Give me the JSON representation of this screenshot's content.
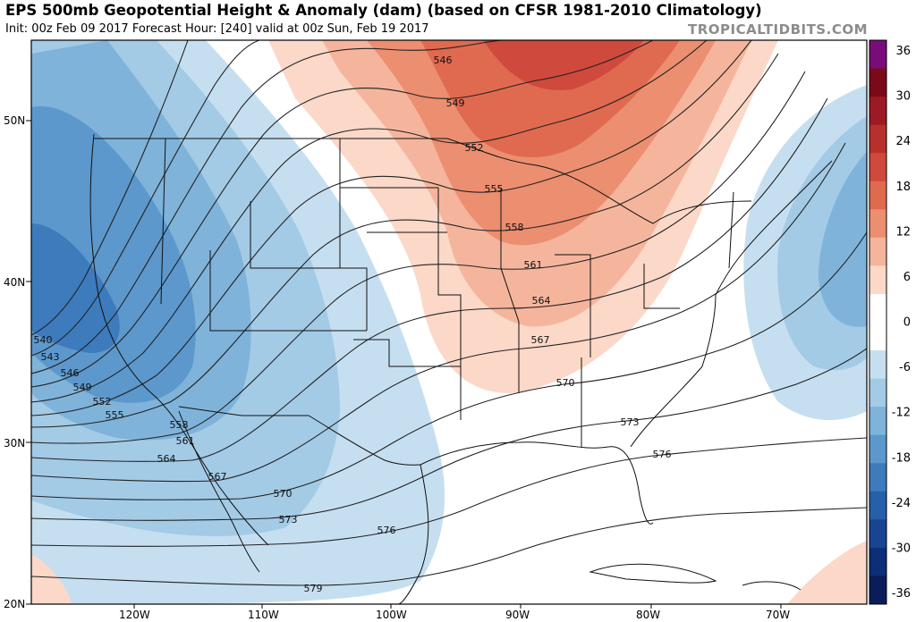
{
  "header": {
    "title": "EPS 500mb Geopotential Height & Anomaly (dam) (based on CFSR 1981-2010 Climatology)",
    "subtitle": "Init: 00z Feb 09 2017   Forecast Hour: [240]   valid at 00z Sun, Feb 19 2017",
    "brand": "TROPICALTIDBITS.COM"
  },
  "map": {
    "lat_labels": [
      "50N",
      "40N",
      "30N",
      "20N"
    ],
    "lon_labels": [
      "120W",
      "110W",
      "100W",
      "90W",
      "80W",
      "70W"
    ],
    "contour_labels": [
      "540",
      "543",
      "546",
      "549",
      "552",
      "555",
      "558",
      "561",
      "564",
      "567",
      "570",
      "573",
      "576",
      "579"
    ],
    "ridge_labels": [
      "546",
      "549",
      "552",
      "555",
      "558",
      "561",
      "564",
      "567",
      "570",
      "573",
      "576"
    ]
  },
  "colorbar": {
    "ticks": [
      "36",
      "30",
      "24",
      "18",
      "12",
      "6",
      "0",
      "-6",
      "-12",
      "-18",
      "-24",
      "-30",
      "-36"
    ],
    "colors": [
      "#7a0c7a",
      "#7a0a1a",
      "#9c1a24",
      "#b8302c",
      "#cf4a3c",
      "#e06a50",
      "#ec8e70",
      "#f5b59c",
      "#fbd8c8",
      "#ffffff",
      "#ffffff",
      "#c6dff0",
      "#a3cbe6",
      "#7fb3da",
      "#5c98cc",
      "#3d7bbc",
      "#2560a8",
      "#174592",
      "#0d2e78",
      "#0a1d5a"
    ]
  }
}
